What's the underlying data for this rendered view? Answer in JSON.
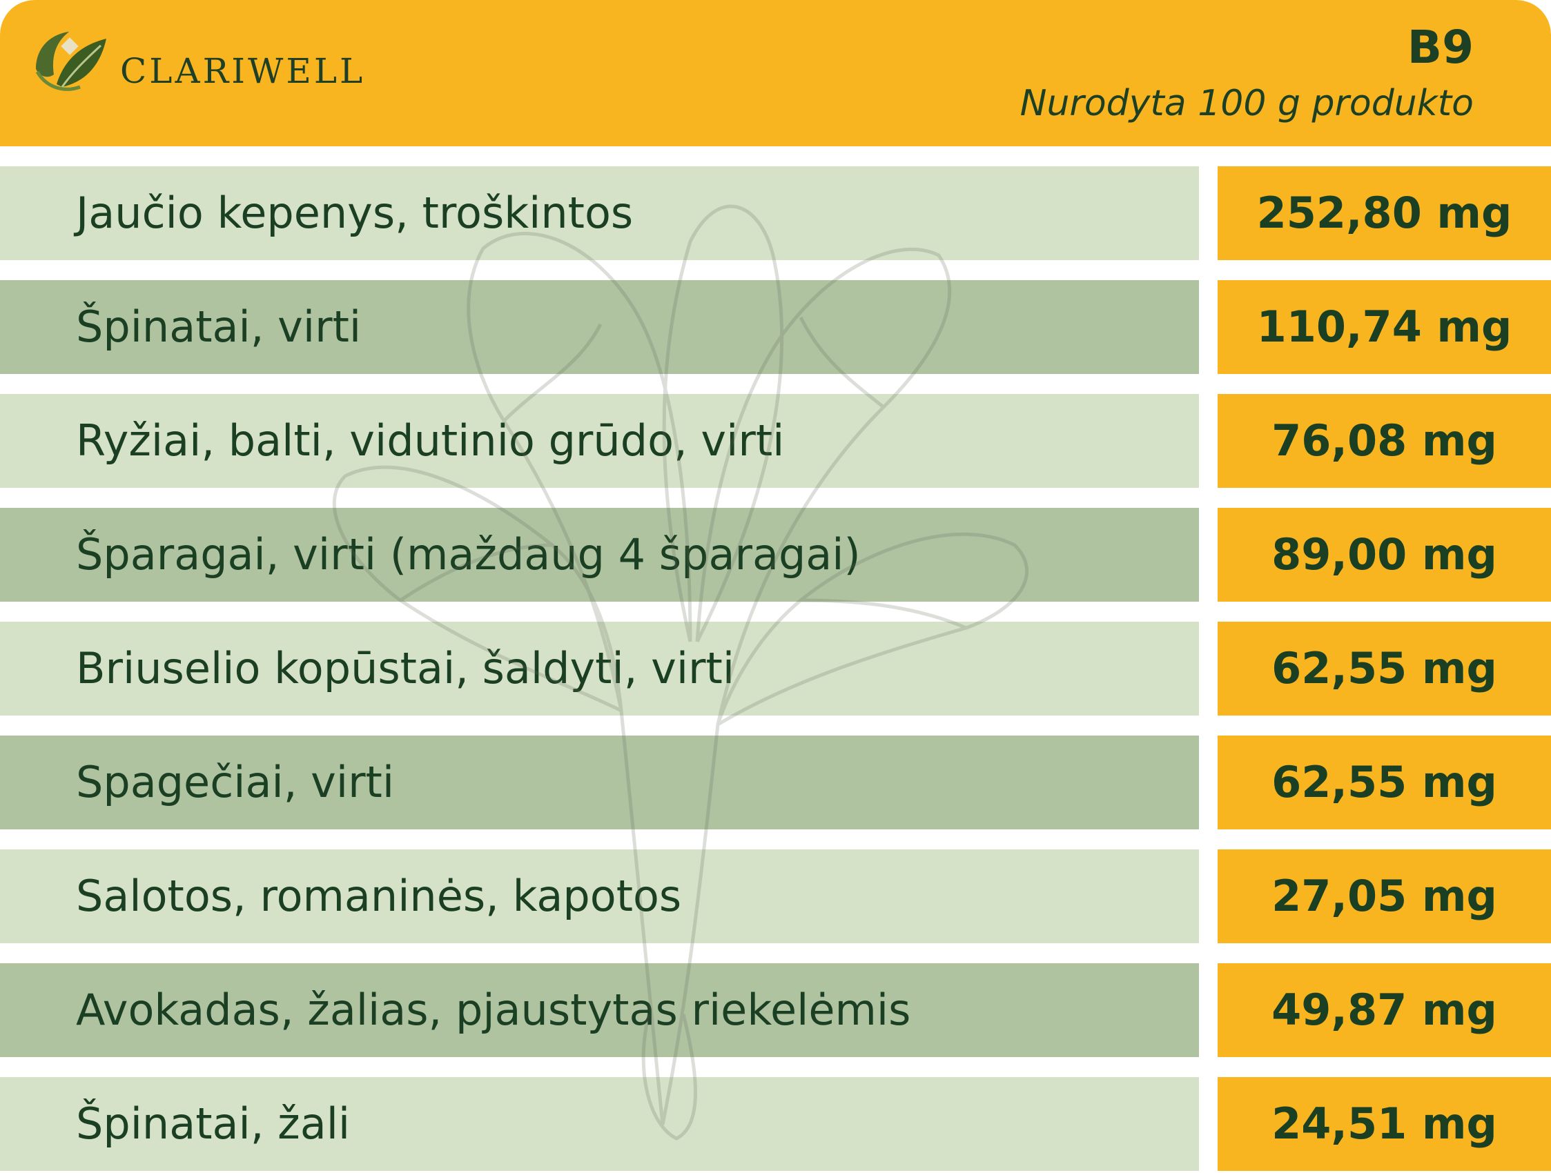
{
  "header": {
    "brand": "CLARIWELL",
    "vitamin": "B9",
    "subtitle": "Nurodyta 100 g produkto"
  },
  "colors": {
    "header_bg": "#f9b520",
    "row_light": "#d6e2c8",
    "row_dark": "#afc3a1",
    "amount_bg": "#f9b520",
    "text": "#1b3f22"
  },
  "icons": {
    "logo": "leaf-logo-icon",
    "background": "spinach-illustration"
  },
  "rows": [
    {
      "food": "Jaučio kepenys, troškintos",
      "amount": "252,80 mg"
    },
    {
      "food": "Špinatai, virti",
      "amount": "110,74 mg"
    },
    {
      "food": "Ryžiai, balti, vidutinio grūdo, virti",
      "amount": "76,08 mg"
    },
    {
      "food": "Šparagai, virti (maždaug 4 šparagai)",
      "amount": "89,00 mg"
    },
    {
      "food": "Briuselio kopūstai, šaldyti, virti",
      "amount": "62,55 mg"
    },
    {
      "food": "Spagečiai, virti",
      "amount": "62,55 mg"
    },
    {
      "food": "Salotos, romaninės, kapotos",
      "amount": "27,05 mg"
    },
    {
      "food": "Avokadas, žalias, pjaustytas riekelėmis",
      "amount": "49,87 mg"
    },
    {
      "food": "Špinatai, žali",
      "amount": "24,51 mg"
    }
  ]
}
